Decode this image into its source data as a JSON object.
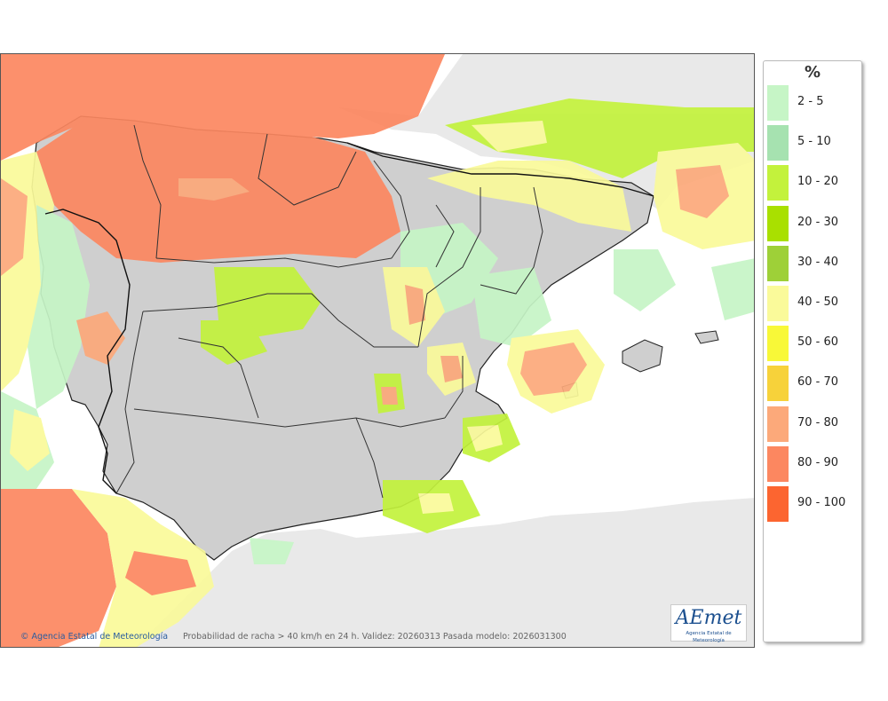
{
  "footer": {
    "credit": "Agencia Estatal de Meteorología",
    "caption": "Probabilidad de racha > 40 km/h en 24 h. Validez: 20260313 Pasada modelo: 2026031300"
  },
  "logo": {
    "word": "AEmet",
    "subtitle": "Agencia Estatal de Meteorología"
  },
  "legend": {
    "unit": "%",
    "items": [
      {
        "label": "2 - 5",
        "color": "#c6f5c6"
      },
      {
        "label": "5 - 10",
        "color": "#a6e2b0"
      },
      {
        "label": "10 - 20",
        "color": "#c3f23c"
      },
      {
        "label": "20 - 30",
        "color": "#a9e000"
      },
      {
        "label": "30 - 40",
        "color": "#9ed038"
      },
      {
        "label": "40 - 50",
        "color": "#fafa9a"
      },
      {
        "label": "50 - 60",
        "color": "#f8f838"
      },
      {
        "label": "60 - 70",
        "color": "#f7d23a"
      },
      {
        "label": "70 - 80",
        "color": "#fca97a"
      },
      {
        "label": "80 - 90",
        "color": "#fc8760"
      },
      {
        "label": "90 - 100",
        "color": "#fc6530"
      }
    ]
  },
  "map_colors": {
    "land_base": "#cfcfcf",
    "outside_land": "#e9e9e9",
    "sea": "#ffffff",
    "border": "#222222"
  }
}
